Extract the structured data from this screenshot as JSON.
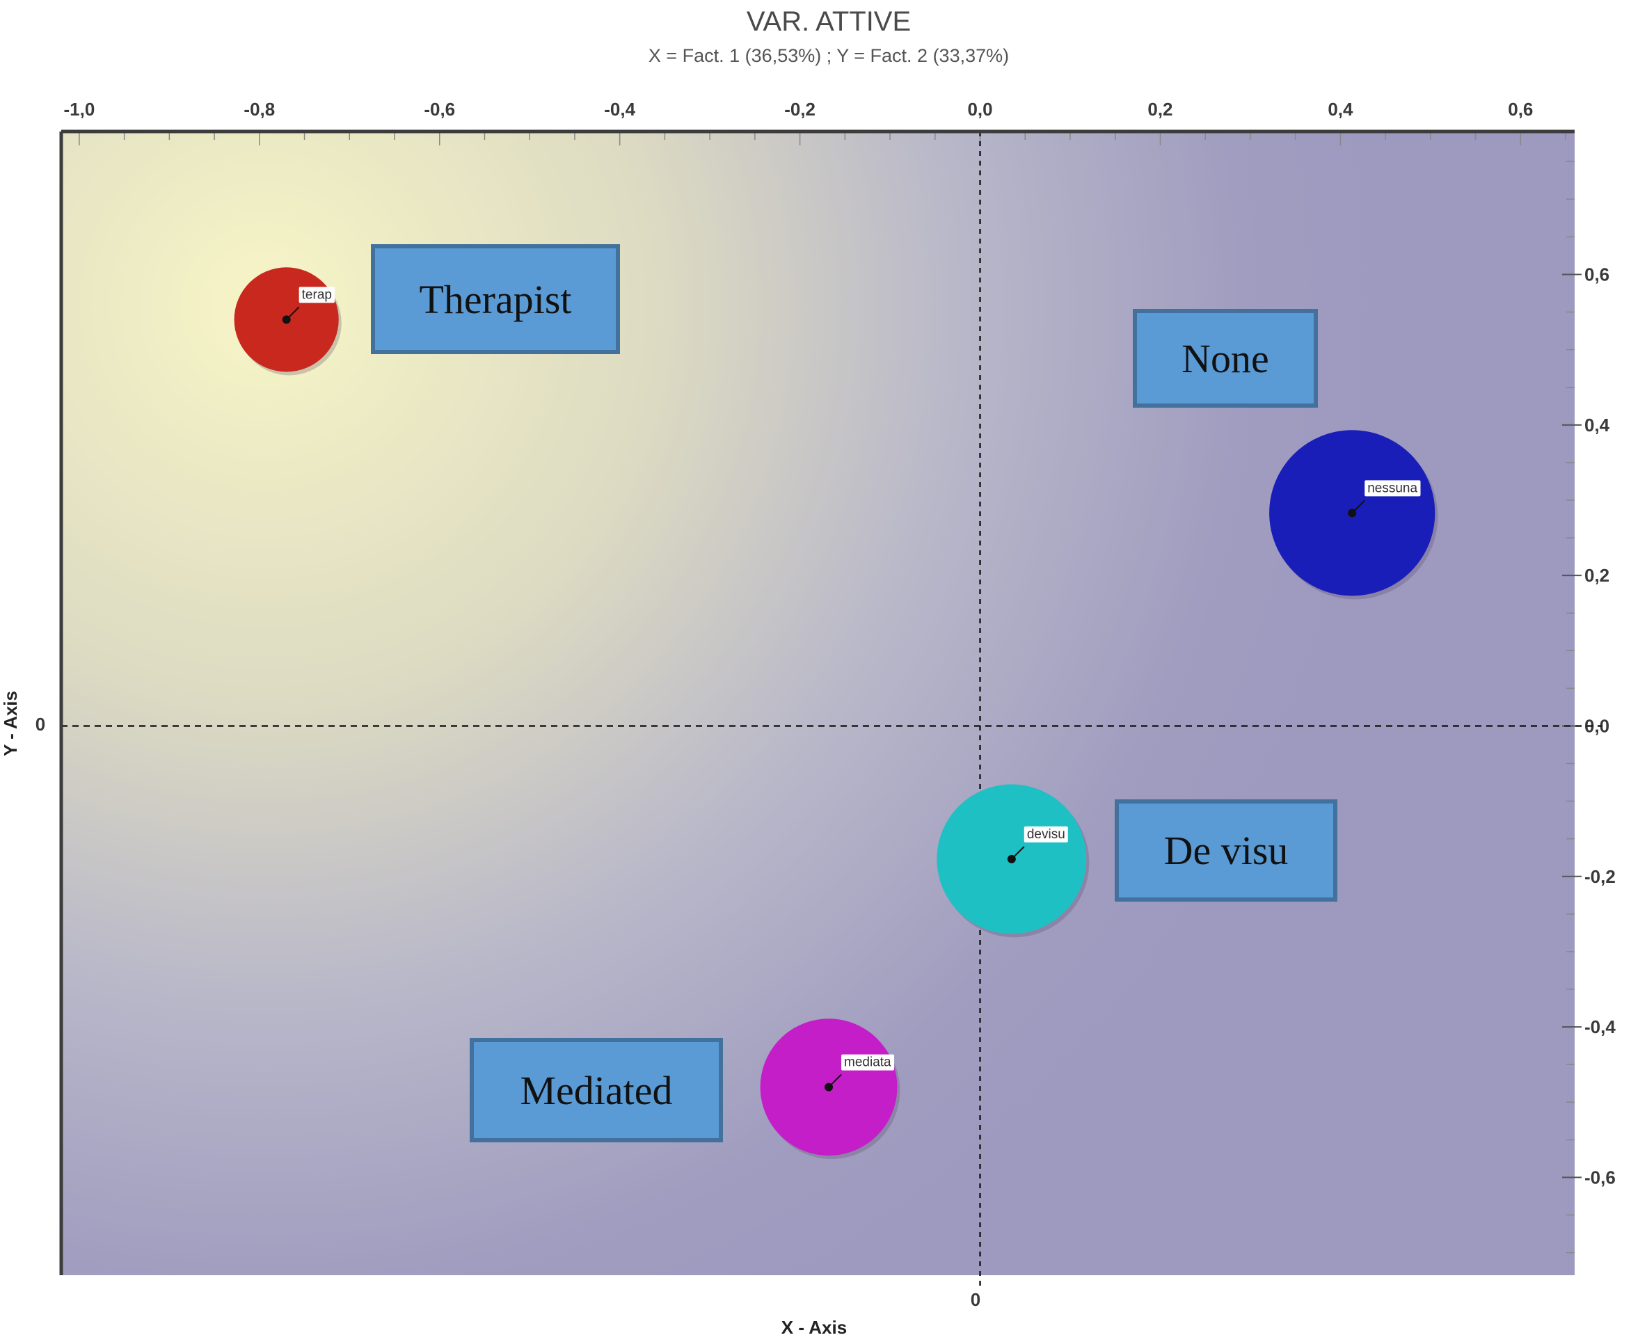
{
  "chart_data": {
    "type": "scatter",
    "title": "VAR. ATTIVE",
    "subtitle": "X = Fact. 1 (36,53%) ; Y = Fact. 2 (33,37%)",
    "xlabel": "X - Axis",
    "ylabel": "Y - Axis",
    "xlim": [
      -1.02,
      0.66
    ],
    "ylim": [
      -0.73,
      0.79
    ],
    "x_ticks": [
      "-1,0",
      "-0,8",
      "-0,6",
      "-0,4",
      "-0,2",
      "0,0",
      "0,2",
      "0,4",
      "0,6"
    ],
    "x_tick_values": [
      -1.0,
      -0.8,
      -0.6,
      -0.4,
      -0.2,
      0.0,
      0.2,
      0.4,
      0.6
    ],
    "y_ticks": [
      "-0,6",
      "-0,4",
      "-0,2",
      "0,0",
      "0,2",
      "0,4",
      "0,6"
    ],
    "y_tick_values": [
      -0.6,
      -0.4,
      -0.2,
      0.0,
      0.2,
      0.4,
      0.6
    ],
    "origin_x_label": "0",
    "origin_y_label": "0",
    "grid": false,
    "points": [
      {
        "label": "terap",
        "x": -0.77,
        "y": 0.54,
        "radius": 0.058,
        "color": "#c8281e"
      },
      {
        "label": "nessuna",
        "x": 0.413,
        "y": 0.283,
        "radius": 0.092,
        "color": "#1a1eb8"
      },
      {
        "label": "devisu",
        "x": 0.035,
        "y": -0.177,
        "radius": 0.083,
        "color": "#1fc0c4"
      },
      {
        "label": "mediata",
        "x": -0.168,
        "y": -0.48,
        "radius": 0.076,
        "color": "#c41ec8"
      }
    ],
    "annotations": [
      "Therapist",
      "None",
      "De visu",
      "Mediated"
    ]
  },
  "colors": {
    "bg_left": "#f5f2c4",
    "bg_right": "#9e9abf",
    "callout_fill": "#5b9bd5",
    "callout_border": "#41719c"
  }
}
